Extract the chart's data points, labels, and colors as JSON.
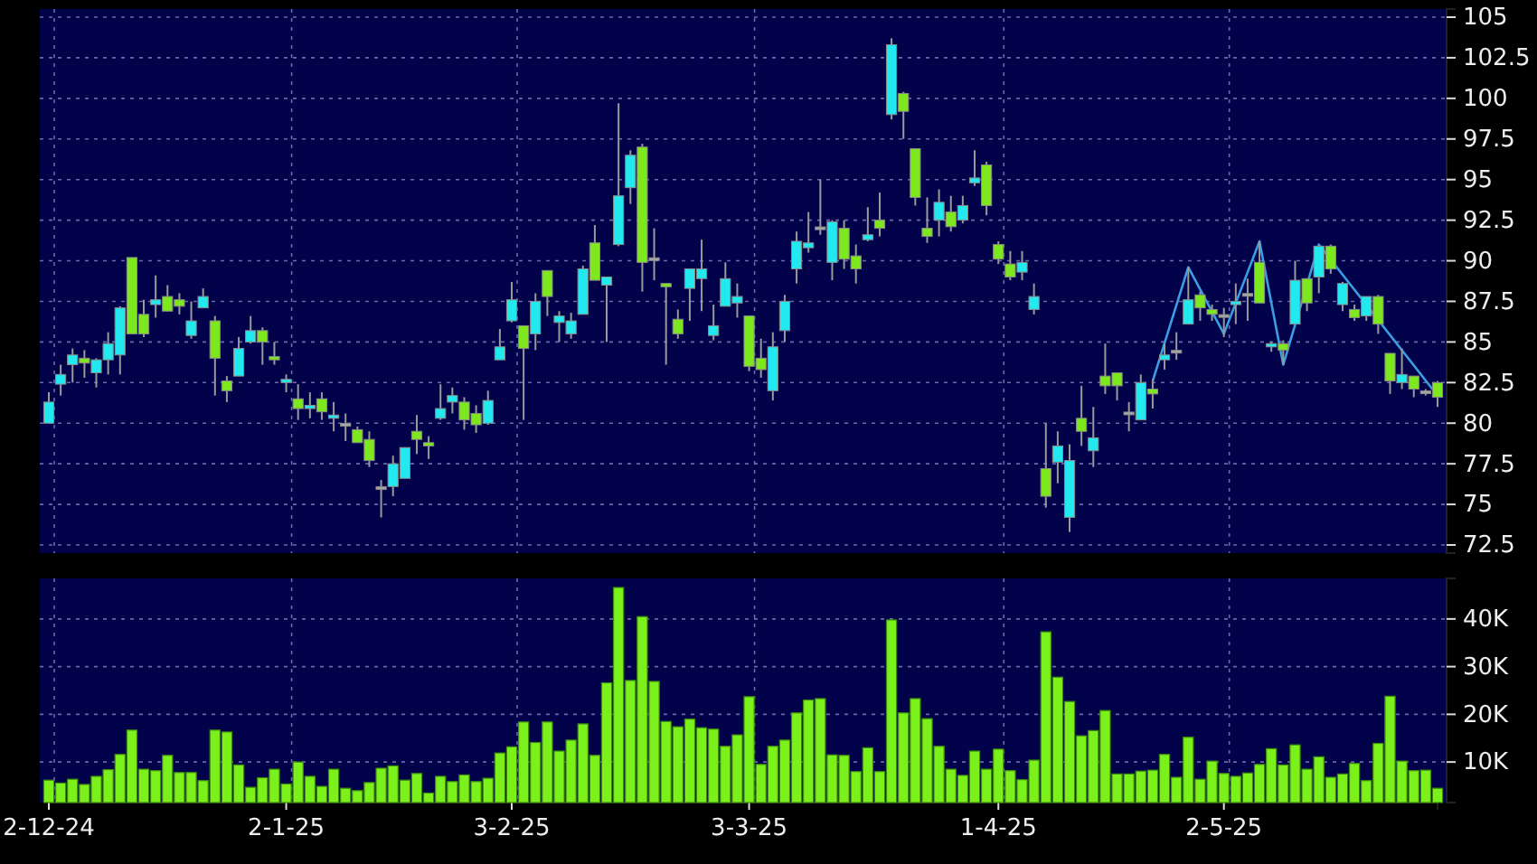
{
  "chart_data": [
    {
      "type": "candlestick",
      "categories": [
        null,
        null,
        null,
        null,
        null,
        null,
        null,
        null,
        null,
        null,
        null,
        null,
        null,
        null,
        null,
        null,
        null,
        null,
        null,
        null,
        null,
        null,
        null,
        null,
        null,
        null,
        null,
        null,
        null,
        null,
        null,
        null,
        null,
        null,
        null,
        null,
        null,
        null,
        null,
        null,
        null,
        null,
        null,
        null,
        null,
        null,
        null,
        null,
        null,
        null,
        null,
        null,
        null,
        null,
        null,
        null,
        null,
        null,
        null,
        null,
        null,
        null,
        null,
        null,
        null,
        null,
        null,
        null,
        null,
        null,
        null,
        null,
        null,
        null,
        null,
        null,
        null,
        null,
        null,
        null,
        null,
        null,
        null,
        null,
        null,
        null,
        null,
        null,
        null,
        null,
        null,
        null,
        null,
        null,
        null,
        null,
        null,
        null,
        null,
        null,
        null,
        null,
        null,
        null,
        null,
        null,
        null,
        null,
        null,
        null,
        null,
        null,
        null,
        null,
        null,
        null,
        null,
        null
      ],
      "ohlc": [
        [
          80.0,
          81.9,
          80.0,
          81.3
        ],
        [
          82.4,
          83.6,
          81.7,
          83.0
        ],
        [
          83.6,
          84.6,
          82.5,
          84.2
        ],
        [
          84.0,
          84.5,
          82.8,
          83.7
        ],
        [
          83.1,
          84.0,
          82.2,
          83.9
        ],
        [
          83.9,
          85.6,
          83.0,
          84.9
        ],
        [
          84.2,
          87.2,
          83.0,
          87.1
        ],
        [
          90.2,
          90.2,
          85.5,
          85.5
        ],
        [
          86.7,
          87.6,
          85.3,
          85.5
        ],
        [
          87.3,
          89.1,
          86.5,
          87.6
        ],
        [
          87.8,
          88.5,
          86.9,
          86.9
        ],
        [
          87.6,
          88.0,
          86.7,
          87.2
        ],
        [
          85.4,
          87.5,
          85.2,
          86.3
        ],
        [
          87.1,
          88.3,
          87.1,
          87.8
        ],
        [
          86.3,
          86.6,
          81.7,
          84.0
        ],
        [
          82.6,
          82.9,
          81.3,
          82.0
        ],
        [
          82.9,
          85.3,
          82.9,
          84.6
        ],
        [
          85.0,
          86.6,
          84.9,
          85.7
        ],
        [
          85.7,
          85.9,
          83.6,
          85.0
        ],
        [
          84.1,
          85.0,
          83.6,
          83.9
        ],
        [
          82.5,
          83.0,
          81.9,
          82.7
        ],
        [
          81.5,
          82.4,
          80.2,
          80.9
        ],
        [
          80.9,
          81.9,
          80.3,
          81.1
        ],
        [
          81.5,
          81.9,
          80.2,
          80.7
        ],
        [
          80.3,
          81.3,
          79.5,
          80.5
        ],
        [
          79.9,
          80.6,
          78.9,
          79.9
        ],
        [
          79.6,
          79.8,
          78.8,
          78.8
        ],
        [
          79.0,
          79.5,
          77.3,
          77.7
        ],
        [
          76.0,
          76.5,
          74.2,
          76.0
        ],
        [
          76.1,
          78.0,
          75.5,
          77.5
        ],
        [
          76.6,
          78.5,
          76.6,
          78.5
        ],
        [
          79.5,
          80.5,
          78.1,
          79.0
        ],
        [
          78.8,
          79.2,
          77.8,
          78.6
        ],
        [
          80.3,
          82.4,
          80.2,
          80.9
        ],
        [
          81.3,
          82.2,
          80.6,
          81.7
        ],
        [
          81.3,
          81.6,
          79.6,
          80.2
        ],
        [
          80.6,
          81.1,
          79.4,
          79.9
        ],
        [
          80.0,
          82.0,
          79.9,
          81.4
        ],
        [
          83.9,
          85.8,
          83.9,
          84.7
        ],
        [
          86.3,
          88.7,
          86.2,
          87.6
        ],
        [
          86.0,
          86.0,
          80.2,
          84.6
        ],
        [
          85.5,
          88.0,
          84.5,
          87.5
        ],
        [
          89.4,
          89.4,
          86.6,
          87.8
        ],
        [
          86.2,
          86.9,
          85.0,
          86.6
        ],
        [
          85.5,
          86.8,
          85.2,
          86.3
        ],
        [
          86.7,
          89.7,
          86.7,
          89.5
        ],
        [
          91.1,
          92.2,
          88.8,
          88.8
        ],
        [
          88.5,
          89.0,
          85.0,
          89.0
        ],
        [
          91.0,
          99.7,
          90.9,
          94.0
        ],
        [
          94.5,
          96.8,
          93.5,
          96.5
        ],
        [
          97.0,
          97.2,
          88.1,
          89.9
        ],
        [
          90.1,
          92.0,
          88.8,
          90.1
        ],
        [
          88.6,
          88.6,
          83.6,
          88.4
        ],
        [
          86.4,
          87.0,
          85.2,
          85.5
        ],
        [
          88.3,
          89.5,
          86.3,
          89.5
        ],
        [
          88.9,
          91.3,
          86.9,
          89.5
        ],
        [
          85.4,
          87.3,
          85.1,
          86.0
        ],
        [
          87.2,
          89.9,
          87.2,
          88.9
        ],
        [
          87.4,
          88.6,
          86.5,
          87.8
        ],
        [
          86.6,
          86.6,
          83.2,
          83.5
        ],
        [
          84.0,
          85.2,
          82.8,
          83.3
        ],
        [
          82.0,
          85.6,
          81.4,
          84.7
        ],
        [
          85.7,
          87.9,
          85.0,
          87.5
        ],
        [
          89.5,
          91.8,
          88.6,
          91.2
        ],
        [
          90.8,
          93.0,
          90.5,
          91.1
        ],
        [
          92.0,
          95.0,
          91.6,
          92.0
        ],
        [
          89.9,
          92.5,
          88.8,
          92.4
        ],
        [
          92.0,
          92.5,
          89.5,
          90.1
        ],
        [
          90.3,
          91.0,
          88.6,
          89.5
        ],
        [
          91.3,
          93.3,
          91.2,
          91.6
        ],
        [
          92.5,
          94.2,
          91.5,
          92.0
        ],
        [
          99.0,
          103.7,
          98.7,
          103.3
        ],
        [
          100.3,
          100.4,
          97.5,
          99.2
        ],
        [
          96.9,
          96.9,
          93.4,
          93.9
        ],
        [
          92.0,
          93.9,
          91.1,
          91.5
        ],
        [
          92.5,
          94.4,
          91.5,
          93.6
        ],
        [
          93.0,
          94.0,
          91.8,
          92.1
        ],
        [
          92.5,
          94.0,
          92.3,
          93.4
        ],
        [
          94.8,
          96.8,
          94.6,
          95.1
        ],
        [
          95.9,
          96.1,
          92.8,
          93.4
        ],
        [
          91.0,
          91.2,
          89.8,
          90.1
        ],
        [
          89.8,
          90.6,
          88.8,
          89.0
        ],
        [
          89.3,
          90.6,
          88.8,
          89.9
        ],
        [
          87.0,
          88.6,
          86.7,
          87.8
        ],
        [
          77.2,
          80.0,
          74.8,
          75.5
        ],
        [
          77.6,
          79.5,
          76.3,
          78.6
        ],
        [
          74.2,
          78.7,
          73.3,
          77.7
        ],
        [
          80.3,
          82.3,
          78.6,
          79.5
        ],
        [
          78.3,
          81.0,
          77.3,
          79.1
        ],
        [
          82.9,
          84.9,
          81.8,
          82.3
        ],
        [
          83.1,
          83.1,
          81.4,
          82.3
        ],
        [
          80.6,
          81.3,
          79.5,
          80.6
        ],
        [
          80.2,
          83.0,
          80.2,
          82.5
        ],
        [
          82.1,
          82.7,
          80.9,
          81.8
        ],
        [
          83.9,
          84.9,
          83.3,
          84.2
        ],
        [
          84.4,
          85.6,
          83.9,
          84.4
        ],
        [
          86.1,
          89.6,
          86.1,
          87.6
        ],
        [
          87.9,
          88.1,
          86.3,
          87.1
        ],
        [
          87.0,
          87.3,
          86.3,
          86.7
        ],
        [
          86.6,
          87.1,
          85.3,
          86.6
        ],
        [
          87.3,
          88.6,
          86.1,
          87.5
        ],
        [
          87.9,
          88.9,
          86.3,
          87.9
        ],
        [
          89.9,
          91.2,
          87.4,
          87.4
        ],
        [
          84.7,
          85.0,
          84.4,
          84.9
        ],
        [
          84.9,
          85.1,
          83.6,
          84.5
        ],
        [
          86.1,
          90.0,
          86.1,
          88.8
        ],
        [
          88.9,
          88.9,
          86.9,
          87.4
        ],
        [
          89.0,
          90.9,
          88.0,
          90.9
        ],
        [
          90.9,
          91.0,
          89.2,
          89.5
        ],
        [
          87.3,
          88.7,
          86.9,
          88.6
        ],
        [
          87.0,
          87.3,
          86.3,
          86.5
        ],
        [
          86.6,
          87.8,
          86.3,
          87.8
        ],
        [
          87.8,
          87.9,
          85.5,
          86.1
        ],
        [
          84.3,
          84.3,
          81.8,
          82.6
        ],
        [
          82.5,
          84.6,
          82.1,
          83.0
        ],
        [
          82.9,
          82.9,
          81.6,
          82.1
        ],
        [
          81.9,
          82.1,
          81.7,
          81.9
        ],
        [
          82.5,
          82.6,
          81.0,
          81.6
        ]
      ],
      "colors": [
        "#22e8f0",
        "#22e8f0",
        "#22e8f0",
        "#7ee81e",
        "#22e8f0",
        "#22e8f0",
        "#22e8f0",
        "#7ee81e",
        "#7ee81e",
        "#22e8f0",
        "#7ee81e",
        "#7ee81e",
        "#22e8f0",
        "#22e8f0",
        "#7ee81e",
        "#7ee81e",
        "#22e8f0",
        "#22e8f0",
        "#7ee81e",
        "#7ee81e",
        "#22e8f0",
        "#7ee81e",
        "#22e8f0",
        "#7ee81e",
        "#22e8f0",
        "#a8a8a8",
        "#7ee81e",
        "#7ee81e",
        "#a8a8a8",
        "#22e8f0",
        "#22e8f0",
        "#7ee81e",
        "#7ee81e",
        "#22e8f0",
        "#22e8f0",
        "#7ee81e",
        "#7ee81e",
        "#22e8f0",
        "#22e8f0",
        "#22e8f0",
        "#7ee81e",
        "#22e8f0",
        "#7ee81e",
        "#22e8f0",
        "#22e8f0",
        "#22e8f0",
        "#7ee81e",
        "#22e8f0",
        "#22e8f0",
        "#22e8f0",
        "#7ee81e",
        "#a8a8a8",
        "#7ee81e",
        "#7ee81e",
        "#22e8f0",
        "#22e8f0",
        "#22e8f0",
        "#22e8f0",
        "#22e8f0",
        "#7ee81e",
        "#7ee81e",
        "#22e8f0",
        "#22e8f0",
        "#22e8f0",
        "#22e8f0",
        "#a8a8a8",
        "#22e8f0",
        "#7ee81e",
        "#7ee81e",
        "#22e8f0",
        "#7ee81e",
        "#22e8f0",
        "#7ee81e",
        "#7ee81e",
        "#7ee81e",
        "#22e8f0",
        "#7ee81e",
        "#22e8f0",
        "#22e8f0",
        "#7ee81e",
        "#7ee81e",
        "#7ee81e",
        "#22e8f0",
        "#22e8f0",
        "#7ee81e",
        "#22e8f0",
        "#22e8f0",
        "#7ee81e",
        "#22e8f0",
        "#7ee81e",
        "#7ee81e",
        "#a8a8a8",
        "#22e8f0",
        "#7ee81e",
        "#22e8f0",
        "#a8a8a8",
        "#22e8f0",
        "#7ee81e",
        "#7ee81e",
        "#a8a8a8",
        "#22e8f0",
        "#a8a8a8",
        "#7ee81e",
        "#22e8f0",
        "#7ee81e",
        "#22e8f0",
        "#7ee81e",
        "#22e8f0",
        "#7ee81e",
        "#22e8f0",
        "#7ee81e",
        "#22e8f0",
        "#7ee81e",
        "#7ee81e",
        "#22e8f0",
        "#7ee81e",
        "#a8a8a8",
        "#7ee81e"
      ],
      "series": [
        {
          "type": "line",
          "color": "#3a9ee0",
          "values": [
            null,
            null,
            null,
            null,
            null,
            null,
            null,
            null,
            null,
            null,
            null,
            null,
            null,
            null,
            null,
            null,
            null,
            null,
            null,
            null,
            null,
            null,
            null,
            null,
            null,
            null,
            null,
            null,
            null,
            null,
            null,
            null,
            null,
            null,
            null,
            null,
            null,
            null,
            null,
            null,
            null,
            null,
            null,
            null,
            null,
            null,
            null,
            null,
            null,
            null,
            null,
            null,
            null,
            null,
            null,
            null,
            null,
            null,
            null,
            null,
            null,
            null,
            null,
            null,
            null,
            null,
            null,
            null,
            null,
            null,
            null,
            null,
            null,
            null,
            null,
            null,
            null,
            null,
            null,
            null,
            null,
            null,
            null,
            null,
            null,
            null,
            null,
            null,
            null,
            null,
            null,
            null,
            null,
            82.6,
            null,
            null,
            89.6,
            null,
            null,
            85.5,
            null,
            null,
            91.2,
            null,
            83.6,
            null,
            null,
            91.0,
            null,
            null,
            null,
            null,
            null,
            null,
            null,
            null,
            null,
            81.7
          ]
        }
      ],
      "ylim": [
        72,
        105.5
      ],
      "yticks": [
        72.5,
        75,
        77.5,
        80,
        82.5,
        85,
        87.5,
        90,
        92.5,
        95,
        97.5,
        100,
        102.5,
        105
      ],
      "grid": true,
      "tick_labels": "y"
    },
    {
      "type": "bar",
      "categories": [
        "2-12-24",
        null,
        null,
        null,
        null,
        null,
        null,
        null,
        null,
        null,
        null,
        null,
        null,
        null,
        null,
        null,
        null,
        null,
        null,
        null,
        "2-1-25",
        null,
        null,
        null,
        null,
        null,
        null,
        null,
        null,
        null,
        null,
        null,
        null,
        null,
        null,
        null,
        null,
        null,
        null,
        "3-2-25",
        null,
        null,
        null,
        null,
        null,
        null,
        null,
        null,
        null,
        null,
        null,
        null,
        null,
        null,
        null,
        null,
        null,
        null,
        null,
        "3-3-25",
        null,
        null,
        null,
        null,
        null,
        null,
        null,
        null,
        null,
        null,
        null,
        null,
        null,
        null,
        null,
        null,
        null,
        null,
        null,
        null,
        "1-4-25",
        null,
        null,
        null,
        null,
        null,
        null,
        null,
        null,
        null,
        null,
        null,
        null,
        null,
        null,
        null,
        null,
        null,
        null,
        "2-5-25",
        null,
        null,
        null,
        null,
        null,
        null,
        null,
        null,
        null,
        null,
        null,
        null,
        null,
        null,
        null,
        null,
        null,
        null
      ],
      "series": [
        {
          "color": "#7cf01a",
          "values": [
            6200,
            5600,
            6400,
            5300,
            7000,
            8400,
            11600,
            16700,
            8500,
            8200,
            11400,
            7800,
            7800,
            6100,
            16700,
            16300,
            9400,
            4700,
            6700,
            8500,
            5400,
            10000,
            7000,
            4900,
            8500,
            4500,
            4000,
            5700,
            8700,
            9200,
            6200,
            7600,
            3500,
            7000,
            5900,
            7300,
            5900,
            6600,
            11900,
            13200,
            18400,
            14100,
            18400,
            12300,
            14600,
            18000,
            11400,
            26600,
            46600,
            27100,
            40500,
            26900,
            18500,
            17400,
            19000,
            17200,
            16900,
            13300,
            15700,
            23700,
            9500,
            13300,
            14600,
            20300,
            23000,
            23300,
            11500,
            11400,
            8000,
            13000,
            8000,
            39800,
            20300,
            23300,
            19100,
            13300,
            8500,
            7200,
            12300,
            8500,
            12700,
            8200,
            6300,
            10400,
            37300,
            27800,
            22700,
            15500,
            16600,
            20800,
            7500,
            7500,
            8100,
            8300,
            11600,
            6800,
            15200,
            6400,
            10200,
            7600,
            7000,
            7700,
            9500,
            12800,
            9400,
            13600,
            8500,
            11100,
            6800,
            7500,
            9700,
            6100,
            13900,
            23800,
            10200,
            8200,
            8300,
            4500
          ]
        }
      ],
      "ylim": [
        1500,
        48500
      ],
      "yticks": [
        {
          "value": 10000,
          "label": "10K"
        },
        {
          "value": 20000,
          "label": "20K"
        },
        {
          "value": 30000,
          "label": "30K"
        },
        {
          "value": 40000,
          "label": "40K"
        }
      ],
      "grid": true
    }
  ]
}
